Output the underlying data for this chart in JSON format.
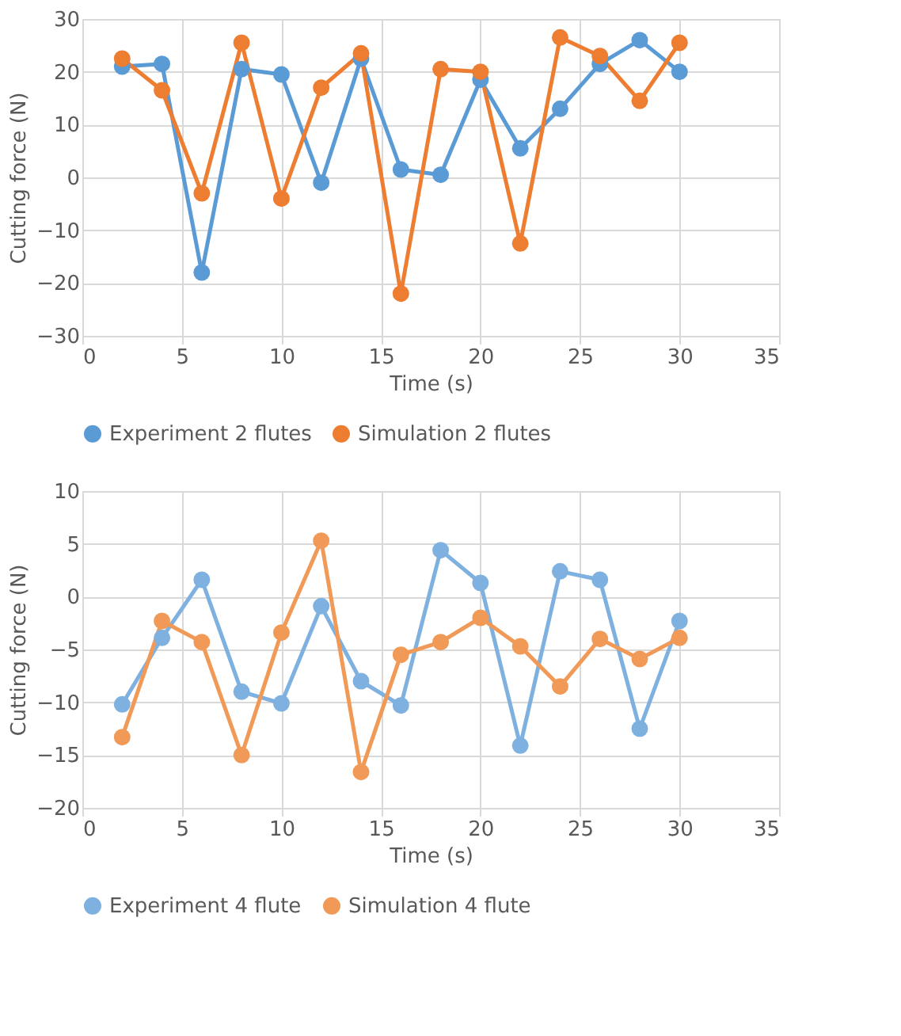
{
  "chart_data": [
    {
      "type": "line",
      "xlabel": "Time (s)",
      "ylabel": "Cutting force (N)",
      "x": [
        2,
        4,
        6,
        8,
        10,
        12,
        14,
        16,
        18,
        20,
        22,
        24,
        26,
        28,
        30
      ],
      "series": [
        {
          "name": "Experiment 2 flutes",
          "color": "#5b9bd5",
          "values": [
            21,
            21.5,
            -18,
            20.5,
            19.5,
            -1,
            22.5,
            1.5,
            0.5,
            18.5,
            5.5,
            13,
            21.5,
            26,
            20
          ]
        },
        {
          "name": "Simulation 2 flutes",
          "color": "#ed7d31",
          "values": [
            22.5,
            16.5,
            -3,
            25.5,
            -4,
            17,
            23.5,
            -22,
            20.5,
            20,
            -12.5,
            26.5,
            23,
            14.5,
            25.5
          ]
        }
      ],
      "xlim": [
        0,
        35
      ],
      "xticks": [
        0,
        5,
        10,
        15,
        20,
        25,
        30,
        35
      ],
      "ylim": [
        -30,
        30
      ],
      "yticks": [
        -30,
        -20,
        -10,
        0,
        10,
        20,
        30
      ],
      "grid": true,
      "legend": "bottom",
      "marker": "circle",
      "line_style": "solid"
    },
    {
      "type": "line",
      "xlabel": "Time (s)",
      "ylabel": "Cutting force (N)",
      "x": [
        2,
        4,
        6,
        8,
        10,
        12,
        14,
        16,
        18,
        20,
        22,
        24,
        26,
        28,
        30
      ],
      "series": [
        {
          "name": "Experiment 4 flute",
          "color": "#7eb1df",
          "values": [
            -10.2,
            -3.9,
            1.6,
            -9,
            -10.1,
            -0.9,
            -8,
            -10.3,
            4.4,
            1.3,
            -14.1,
            2.4,
            1.6,
            -12.5,
            -2.3
          ]
        },
        {
          "name": "Simulation 4 flute",
          "color": "#f19a58",
          "values": [
            -13.3,
            -2.3,
            -4.3,
            -15,
            -3.4,
            5.3,
            -16.6,
            -5.5,
            -4.3,
            -2,
            -4.7,
            -8.5,
            -4,
            -5.9,
            -3.9
          ]
        }
      ],
      "xlim": [
        0,
        35
      ],
      "xticks": [
        0,
        5,
        10,
        15,
        20,
        25,
        30,
        35
      ],
      "ylim": [
        -20,
        10
      ],
      "yticks": [
        -20,
        -15,
        -10,
        -5,
        0,
        5,
        10
      ],
      "grid": true,
      "legend": "bottom",
      "marker": "circle",
      "line_style": "solid"
    }
  ]
}
